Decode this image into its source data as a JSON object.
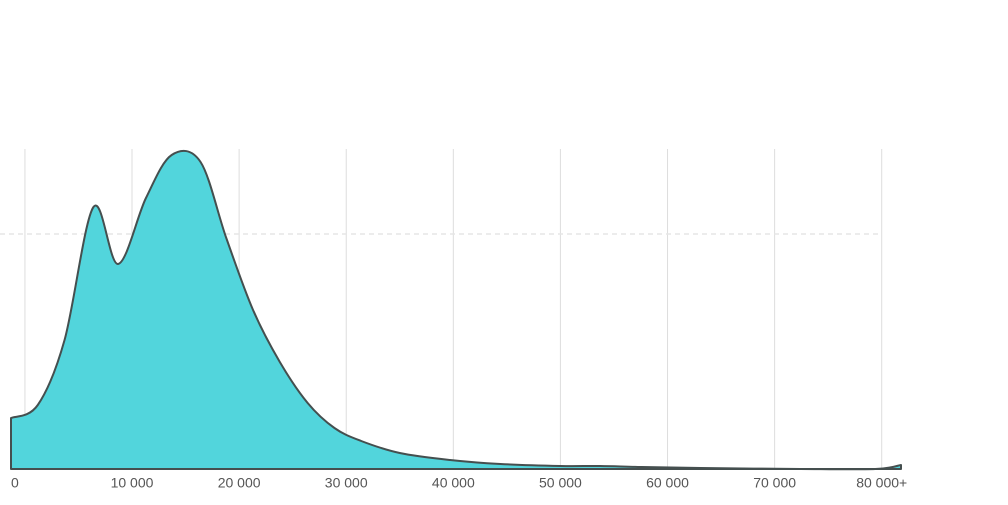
{
  "chart_data": {
    "type": "area",
    "x": [
      -1300,
      1200,
      3700,
      6400,
      8700,
      11300,
      13700,
      16400,
      18800,
      21300,
      23800,
      26400,
      28900,
      31400,
      35000,
      39700,
      44400,
      50000,
      53700,
      57500,
      63100,
      72400,
      79400,
      81800
    ],
    "values": [
      51,
      64,
      129,
      262,
      205,
      271,
      314,
      307,
      231,
      159,
      107,
      66,
      41,
      28,
      16,
      9,
      5,
      3,
      3,
      2,
      1,
      0,
      0,
      4
    ],
    "color": "#52d5dc",
    "line_color": "#454f4f",
    "xlim": [
      -1300,
      81800
    ],
    "xticks": [
      0,
      {
        "value": 10000,
        "label": "10 000"
      },
      {
        "value": 20000,
        "label": "20 000"
      },
      {
        "value": 30000,
        "label": "30 000"
      },
      {
        "value": 40000,
        "label": "40 000"
      },
      {
        "value": 50000,
        "label": "50 000"
      },
      {
        "value": 60000,
        "label": "60 000"
      },
      {
        "value": 70000,
        "label": "70 000"
      },
      {
        "value": 80000,
        "label": "80 000+"
      }
    ],
    "ylim": [
      0,
      320
    ],
    "yticks": [
      235
    ],
    "grid": true
  }
}
